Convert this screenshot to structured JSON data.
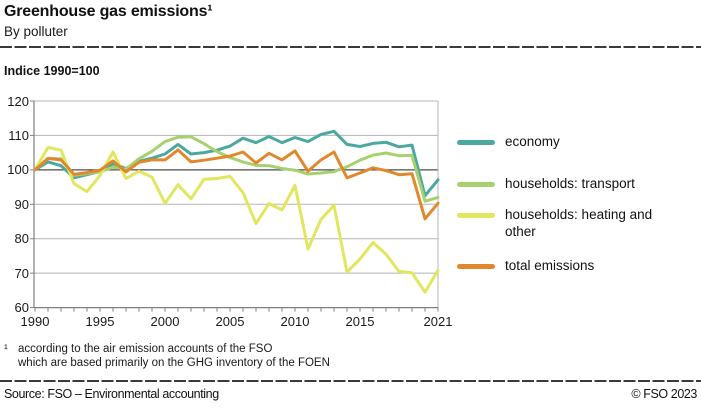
{
  "header": {
    "title": "Greenhouse gas emissions¹",
    "subtitle": "By polluter"
  },
  "axis_note": "Indice 1990=100",
  "footnote": {
    "marker": "¹",
    "line1": "according to the air emission accounts of the FSO",
    "line2": "which are based primarily on the GHG inventory of the FOEN"
  },
  "footer": {
    "source": "Source: FSO – Environmental accounting",
    "copyright": "© FSO 2023"
  },
  "colors": {
    "economy": "#4aa8a1",
    "households_transport": "#a7d06f",
    "households_heating": "#e1e65f",
    "total": "#e1882d",
    "grid": "#b5b5b5",
    "reference_line": "#4d4d4d",
    "axis": "#808080"
  },
  "chart_data": {
    "type": "line",
    "title": "Greenhouse gas emissions, by polluter",
    "ylabel": "Indice 1990=100",
    "ylim": [
      60,
      120
    ],
    "grid": true,
    "reference_line": 100,
    "legend_position": "right",
    "y_ticks": [
      60,
      70,
      80,
      90,
      100,
      110,
      120
    ],
    "x_tick_labels": [
      "1990",
      "1995",
      "2000",
      "2005",
      "2010",
      "2015",
      "2021"
    ],
    "x_tick_years": [
      1990,
      1995,
      2000,
      2005,
      2010,
      2015,
      2021
    ],
    "x": [
      1990,
      1991,
      1992,
      1993,
      1994,
      1995,
      1996,
      1997,
      1998,
      1999,
      2000,
      2001,
      2002,
      2003,
      2004,
      2005,
      2006,
      2007,
      2008,
      2009,
      2010,
      2011,
      2012,
      2013,
      2014,
      2015,
      2016,
      2017,
      2018,
      2019,
      2020,
      2021
    ],
    "series": [
      {
        "name": "economy",
        "color": "#4aa8a1",
        "values": [
          100,
          102.3,
          101.2,
          97.7,
          98.6,
          99.5,
          101.8,
          100.4,
          102.5,
          103.4,
          104.6,
          107.4,
          104.6,
          105,
          105.7,
          106.9,
          109.2,
          107.9,
          109.7,
          107.9,
          109.4,
          108.2,
          110.3,
          111.2,
          107.4,
          106.8,
          107.7,
          108,
          106.7,
          107.2,
          92.5,
          97.1
        ]
      },
      {
        "name": "households: transport",
        "color": "#a7d06f",
        "values": [
          100,
          103.4,
          103.2,
          98.4,
          98.9,
          99.4,
          100.8,
          100.2,
          103.2,
          105.4,
          108.2,
          109.5,
          109.6,
          107.6,
          105.3,
          103.6,
          102.3,
          101.3,
          101.2,
          100.4,
          99.9,
          98.8,
          99.1,
          99.5,
          100.9,
          102.8,
          104.3,
          104.9,
          104.1,
          104.2,
          90.9,
          92
        ]
      },
      {
        "name": "households: heating and other",
        "color": "#e1e65f",
        "values": [
          100,
          106.5,
          105.7,
          96,
          93.7,
          98.4,
          105.2,
          97.5,
          99.6,
          97.9,
          90.3,
          95.7,
          91.6,
          97.3,
          97.5,
          98.1,
          93.4,
          84.4,
          90.2,
          88.4,
          95.5,
          77,
          85.6,
          89.7,
          70.3,
          74.1,
          78.9,
          75.5,
          70.5,
          70.1,
          64.5,
          70.8
        ]
      },
      {
        "name": "total emissions",
        "color": "#e1882d",
        "values": [
          100,
          103.3,
          102.9,
          98.7,
          99.2,
          99.9,
          102.6,
          99.4,
          102.2,
          102.9,
          102.9,
          105.8,
          102.3,
          102.8,
          103.4,
          104,
          105.2,
          102,
          104.8,
          102.9,
          105.5,
          99.6,
          102.9,
          105.2,
          97.7,
          99.1,
          100.6,
          99.8,
          98.6,
          98.9,
          85.8,
          90.3
        ]
      }
    ]
  }
}
